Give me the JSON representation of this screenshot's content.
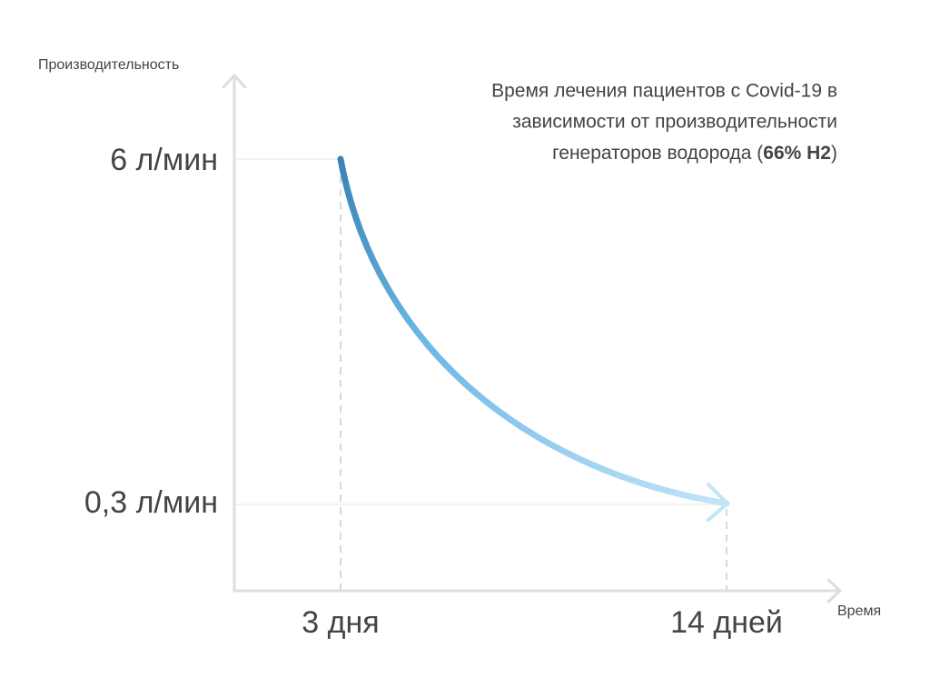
{
  "y_axis_label": "Производительность",
  "x_axis_label": "Время",
  "y_labels": [
    "6 л/мин",
    "0,3 л/мин"
  ],
  "x_labels": [
    "3 дня",
    "14 дней"
  ],
  "title": {
    "line_1": "Время лечения пациентов с Covid-19 в",
    "line_2": "зависимости от производительности",
    "line_3_start": "генераторов водорода (",
    "line_3_bold": "66% H2",
    "line_3_end": ")"
  }
}
